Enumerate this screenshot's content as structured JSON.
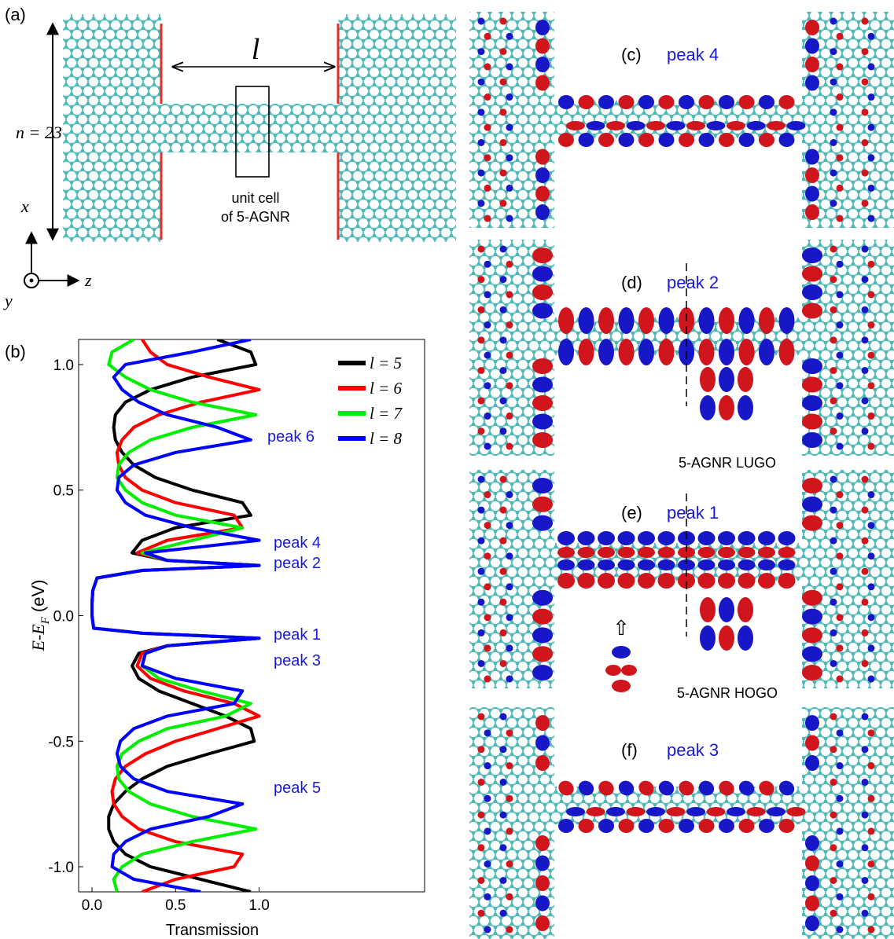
{
  "panel_a": {
    "label": "(a)",
    "length_symbol": "l",
    "width_label": "n = 23",
    "unit_cell": [
      "unit cell",
      "of 5-AGNR"
    ],
    "axes": [
      "x",
      "y",
      "z"
    ]
  },
  "panel_b_label": "(b)",
  "chart_data": {
    "type": "line",
    "y_label": {
      "main": "E-E",
      "sub": "F",
      "unit": "(eV)"
    },
    "x_label": "Transmission",
    "y": [
      1.1,
      1.05,
      1.0,
      0.95,
      0.9,
      0.85,
      0.8,
      0.75,
      0.7,
      0.65,
      0.6,
      0.55,
      0.5,
      0.45,
      0.4,
      0.35,
      0.3,
      0.25,
      0.22,
      0.2,
      0.18,
      0.15,
      0.1,
      0.05,
      0,
      -0.05,
      -0.07,
      -0.09,
      -0.12,
      -0.15,
      -0.2,
      -0.25,
      -0.3,
      -0.35,
      -0.4,
      -0.45,
      -0.5,
      -0.55,
      -0.6,
      -0.65,
      -0.7,
      -0.75,
      -0.8,
      -0.85,
      -0.9,
      -0.95,
      -1.0,
      -1.05,
      -1.1
    ],
    "series": [
      {
        "name": "l = 5",
        "color": "#000000",
        "values": [
          0.75,
          0.95,
          0.98,
          0.6,
          0.35,
          0.2,
          0.14,
          0.13,
          0.14,
          0.18,
          0.25,
          0.38,
          0.6,
          0.9,
          0.95,
          0.5,
          0.3,
          0.24,
          0.45,
          1,
          0.3,
          0.03,
          0.005,
          0,
          0,
          0.01,
          0.3,
          1,
          0.45,
          0.28,
          0.24,
          0.28,
          0.4,
          0.6,
          0.8,
          0.95,
          0.97,
          0.7,
          0.45,
          0.3,
          0.2,
          0.13,
          0.1,
          0.1,
          0.13,
          0.2,
          0.35,
          0.65,
          0.95
        ]
      },
      {
        "name": "l = 6",
        "color": "#ff0000",
        "values": [
          0.3,
          0.35,
          0.45,
          0.7,
          1.0,
          0.65,
          0.4,
          0.25,
          0.18,
          0.15,
          0.16,
          0.2,
          0.3,
          0.5,
          0.85,
          0.9,
          0.45,
          0.27,
          0.45,
          1,
          0.3,
          0.03,
          0.005,
          0,
          0,
          0.01,
          0.3,
          1,
          0.45,
          0.3,
          0.27,
          0.35,
          0.55,
          0.85,
          1.0,
          0.75,
          0.5,
          0.32,
          0.2,
          0.14,
          0.12,
          0.13,
          0.18,
          0.28,
          0.5,
          0.9,
          0.85,
          0.5,
          0.3
        ]
      },
      {
        "name": "l = 7",
        "color": "#00ee00",
        "values": [
          0.25,
          0.12,
          0.1,
          0.2,
          0.35,
          0.6,
          0.98,
          0.6,
          0.35,
          0.22,
          0.16,
          0.15,
          0.2,
          0.3,
          0.5,
          0.9,
          0.6,
          0.3,
          0.45,
          1,
          0.3,
          0.03,
          0.005,
          0,
          0,
          0.01,
          0.3,
          1,
          0.45,
          0.32,
          0.3,
          0.4,
          0.65,
          0.95,
          0.8,
          0.45,
          0.28,
          0.18,
          0.15,
          0.16,
          0.22,
          0.35,
          0.6,
          0.98,
          0.6,
          0.3,
          0.18,
          0.13,
          0.15
        ]
      },
      {
        "name": "l = 8",
        "color": "#0000ff",
        "values": [
          0.95,
          0.6,
          0.2,
          0.13,
          0.18,
          0.28,
          0.45,
          0.75,
          0.95,
          0.5,
          0.25,
          0.16,
          0.15,
          0.2,
          0.32,
          0.6,
          1.0,
          0.32,
          0.45,
          1,
          0.3,
          0.03,
          0.005,
          0,
          0,
          0.01,
          0.3,
          1,
          0.45,
          0.32,
          0.3,
          0.5,
          0.9,
          0.85,
          0.45,
          0.25,
          0.17,
          0.15,
          0.17,
          0.25,
          0.45,
          0.9,
          0.7,
          0.35,
          0.2,
          0.13,
          0.12,
          0.25,
          0.65
        ]
      }
    ],
    "xlim": [
      -0.08,
      1.99
    ],
    "ylim": [
      -1.1,
      1.1
    ],
    "xticks": [
      {
        "value": 0,
        "label": "0.0"
      },
      {
        "value": 0.5,
        "label": "0.5"
      },
      {
        "value": 1,
        "label": "1.0"
      }
    ],
    "yticks": [
      {
        "value": -1,
        "label": "-1.0"
      },
      {
        "value": -0.5,
        "label": "-0.5"
      },
      {
        "value": 0,
        "label": "0.0"
      },
      {
        "value": 0.5,
        "label": "0.5"
      },
      {
        "value": 1,
        "label": "1.0"
      }
    ],
    "legend": "upper right",
    "grid": false,
    "annotations": [
      "peak 6",
      "peak 4",
      "peak 2",
      "peak 1",
      "peak 3",
      "peak 5"
    ]
  },
  "panels": [
    {
      "label": "(c)",
      "peak": "peak 4"
    },
    {
      "label": "(d)",
      "peak": "peak 2",
      "inset": "5-AGNR LUGO"
    },
    {
      "label": "(e)",
      "peak": "peak 1",
      "inset": "5-AGNR HOGO"
    },
    {
      "label": "(f)",
      "peak": "peak 3"
    }
  ]
}
